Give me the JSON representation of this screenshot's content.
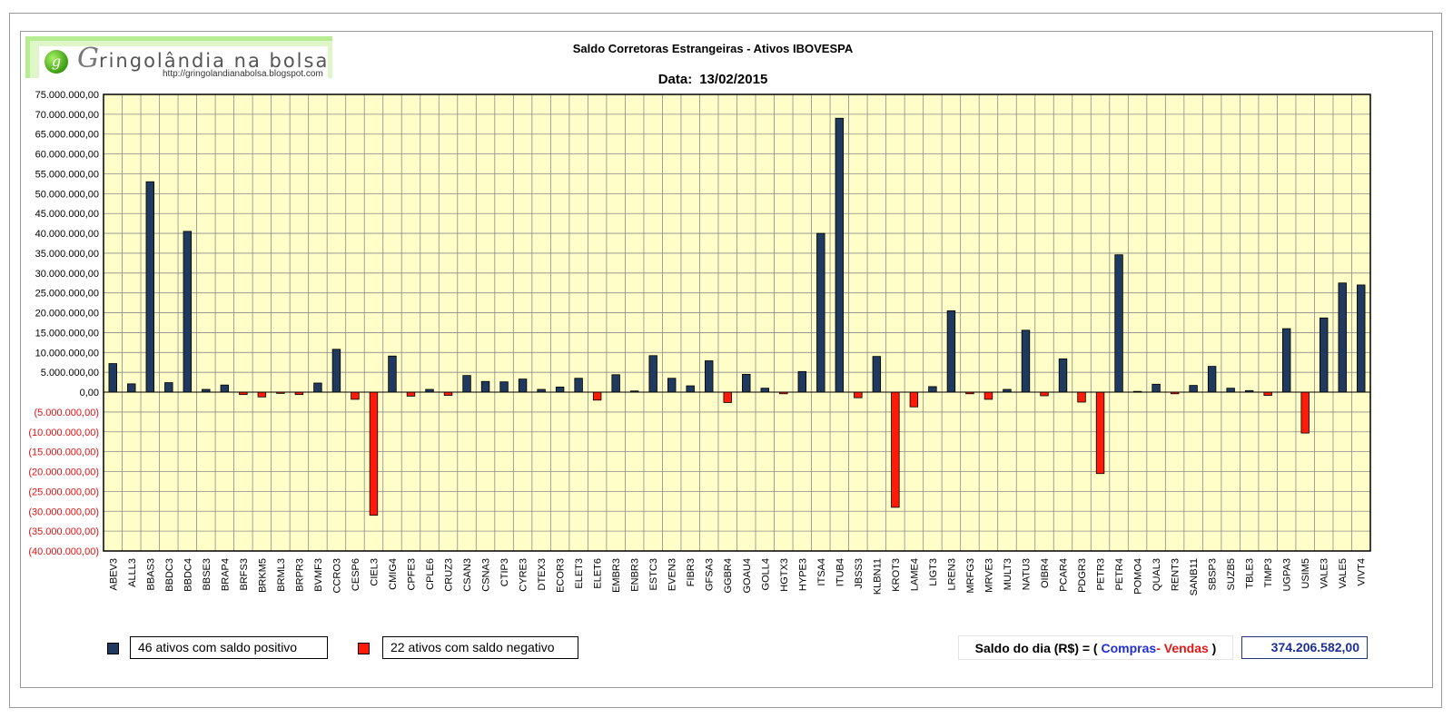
{
  "logo": {
    "initial": "G",
    "name_rest": "ringolândia na bolsa",
    "url": "http://gringolandianabolsa.blogspot.com",
    "ball_glyph": "g"
  },
  "title": "Saldo Corretoras Estrangeiras - Ativos IBOVESPA",
  "date_label": "Data:",
  "date_value": "13/02/2015",
  "legend": {
    "positive": "46 ativos com saldo positivo",
    "negative": "22 ativos com saldo negativo"
  },
  "saldo": {
    "label_prefix": "Saldo do dia (R$) = (",
    "compras": "Compras",
    "separator": "-",
    "vendas": "Vendas",
    "label_suffix": ")",
    "value": "374.206.582,00"
  },
  "colors": {
    "positive": "#1f3a5e",
    "negative": "#ff1a0a",
    "plot_bg": "#fffec8",
    "grid": "#8c8c8c",
    "neg_label": "#e01010"
  },
  "chart_data": {
    "type": "bar",
    "title": "Saldo Corretoras Estrangeiras - Ativos IBOVESPA",
    "ylim": [
      -40000000,
      75000000
    ],
    "y_tick_step": 5000000,
    "y_ticks": [
      "75.000.000,00",
      "70.000.000,00",
      "65.000.000,00",
      "60.000.000,00",
      "55.000.000,00",
      "50.000.000,00",
      "45.000.000,00",
      "40.000.000,00",
      "35.000.000,00",
      "30.000.000,00",
      "25.000.000,00",
      "20.000.000,00",
      "15.000.000,00",
      "10.000.000,00",
      "5.000.000,00",
      "0,00",
      "(5.000.000,00)",
      "(10.000.000,00)",
      "(15.000.000,00)",
      "(20.000.000,00)",
      "(25.000.000,00)",
      "(30.000.000,00)",
      "(35.000.000,00)",
      "(40.000.000,00)"
    ],
    "grid": true,
    "categories": [
      "ABEV3",
      "ALLL3",
      "BBAS3",
      "BBDC3",
      "BBDC4",
      "BBSE3",
      "BRAP4",
      "BRFS3",
      "BRKM5",
      "BRML3",
      "BRPR3",
      "BVMF3",
      "CCRO3",
      "CESP6",
      "CIEL3",
      "CMIG4",
      "CPFE3",
      "CPLE6",
      "CRUZ3",
      "CSAN3",
      "CSNA3",
      "CTIP3",
      "CYRE3",
      "DTEX3",
      "ECOR3",
      "ELET3",
      "ELET6",
      "EMBR3",
      "ENBR3",
      "ESTC3",
      "EVEN3",
      "FIBR3",
      "GFSA3",
      "GGBR4",
      "GOAU4",
      "GOLL4",
      "HGTX3",
      "HYPE3",
      "ITSA4",
      "ITUB4",
      "JBSS3",
      "KLBN11",
      "KROT3",
      "LAME4",
      "LIGT3",
      "LREN3",
      "MRFG3",
      "MRVE3",
      "MULT3",
      "NATU3",
      "OIBR4",
      "PCAR4",
      "PDGR3",
      "PETR3",
      "PETR4",
      "POMO4",
      "QUAL3",
      "RENT3",
      "SANB11",
      "SBSP3",
      "SUZB5",
      "TBLE3",
      "TIMP3",
      "UGPA3",
      "USIM5",
      "VALE3",
      "VALE5",
      "VIVT4"
    ],
    "values": [
      7200000,
      2100000,
      53000000,
      2400000,
      40500000,
      700000,
      1800000,
      -600000,
      -1200000,
      -300000,
      -600000,
      2300000,
      10800000,
      -1800000,
      -31000000,
      9100000,
      -1000000,
      700000,
      -800000,
      4200000,
      2700000,
      2600000,
      3300000,
      700000,
      1300000,
      3500000,
      -2000000,
      4400000,
      300000,
      9200000,
      3500000,
      1600000,
      7900000,
      -2600000,
      4500000,
      1000000,
      -400000,
      5200000,
      40000000,
      69000000,
      -1400000,
      9000000,
      -29000000,
      -3700000,
      1400000,
      20500000,
      -400000,
      -1800000,
      700000,
      15600000,
      -900000,
      8400000,
      -2500000,
      -20500000,
      34600000,
      200000,
      2000000,
      -400000,
      1700000,
      6500000,
      1000000,
      400000,
      -800000,
      16000000,
      -10300000,
      18700000,
      27500000,
      27000000
    ]
  }
}
